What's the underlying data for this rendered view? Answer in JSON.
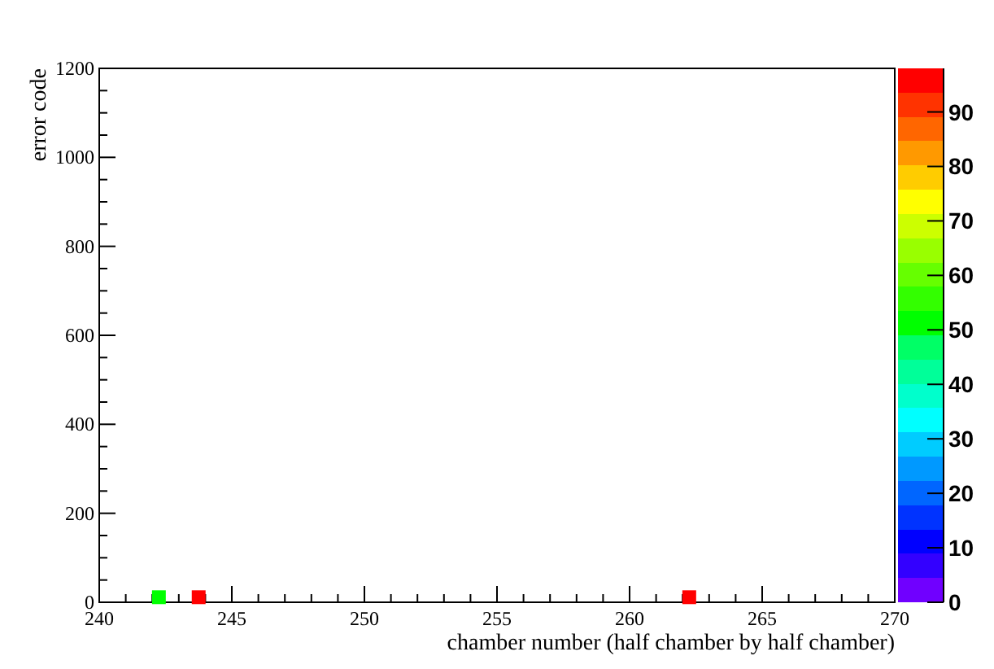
{
  "chart_data": {
    "type": "scatter",
    "xlabel": "chamber number (half chamber by half chamber)",
    "ylabel": "error code",
    "x": [
      242.25,
      243.75,
      262.25
    ],
    "values": [
      15,
      15,
      15
    ],
    "cvalues": [
      52,
      96,
      96
    ],
    "marker": "square",
    "xlim": [
      240,
      270
    ],
    "xticks": [
      240,
      245,
      250,
      255,
      260,
      265,
      270
    ],
    "ylim": [
      0,
      1200
    ],
    "yticks": [
      0,
      200,
      400,
      600,
      800,
      1000,
      1200
    ],
    "clim": [
      0,
      98
    ],
    "cticks": [
      0,
      10,
      20,
      30,
      40,
      50,
      60,
      70,
      80,
      90
    ],
    "grid": false
  }
}
